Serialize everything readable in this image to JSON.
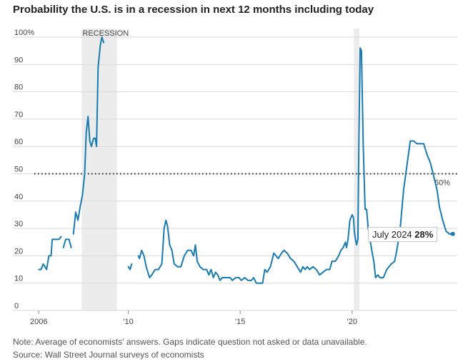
{
  "title": "Probability the U.S. is in a recession in next 12 months including today",
  "recession_label": "RECESSION",
  "threshold_label": "50%",
  "tooltip": {
    "label": "July 2024",
    "value": "28%"
  },
  "note": "Note: Average of economists' answers. Gaps indicate question not asked or data unavailable.",
  "source": "Source: Wall Street Journal surveys of economists",
  "colors": {
    "line": "#1a7bb0",
    "recession_band": "#ececec",
    "dotted": "#222222"
  },
  "chart_data": {
    "type": "line",
    "title": "Probability the U.S. is in a recession in next 12 months including today",
    "xlabel": "",
    "ylabel": "",
    "xlim": [
      2005.8,
      2024.7
    ],
    "ylim": [
      0,
      100
    ],
    "yticks": [
      {
        "value": 0,
        "label": "0"
      },
      {
        "value": 10,
        "label": "10"
      },
      {
        "value": 20,
        "label": "20"
      },
      {
        "value": 30,
        "label": "30"
      },
      {
        "value": 40,
        "label": "40"
      },
      {
        "value": 50,
        "label": "50"
      },
      {
        "value": 60,
        "label": "60"
      },
      {
        "value": 70,
        "label": "70"
      },
      {
        "value": 80,
        "label": "80"
      },
      {
        "value": 90,
        "label": "90"
      },
      {
        "value": 100,
        "label": "100%"
      }
    ],
    "xticks": [
      {
        "value": 2006,
        "label": "2006"
      },
      {
        "value": 2010,
        "label": "'10"
      },
      {
        "value": 2015,
        "label": "'15"
      },
      {
        "value": 2020,
        "label": "'20"
      }
    ],
    "recessions": [
      [
        2007.92,
        2009.5
      ],
      [
        2020.08,
        2020.33
      ]
    ],
    "threshold": 50,
    "highlight": {
      "x": 2024.5,
      "y": 28
    },
    "segments": [
      [
        [
          2006.0,
          15
        ],
        [
          2006.1,
          15
        ],
        [
          2006.2,
          17
        ],
        [
          2006.35,
          15
        ],
        [
          2006.45,
          20
        ],
        [
          2006.55,
          20
        ],
        [
          2006.6,
          26
        ],
        [
          2006.8,
          26
        ],
        [
          2006.9,
          26
        ],
        [
          2007.0,
          27
        ]
      ],
      [
        [
          2007.1,
          23
        ],
        [
          2007.2,
          26
        ],
        [
          2007.35,
          26
        ],
        [
          2007.45,
          23
        ]
      ],
      [
        [
          2007.55,
          28
        ],
        [
          2007.65,
          36
        ],
        [
          2007.75,
          33
        ],
        [
          2007.85,
          38
        ],
        [
          2007.95,
          42
        ],
        [
          2008.05,
          50
        ],
        [
          2008.12,
          65
        ],
        [
          2008.2,
          71
        ],
        [
          2008.28,
          62
        ],
        [
          2008.35,
          60
        ],
        [
          2008.45,
          63
        ],
        [
          2008.52,
          63
        ],
        [
          2008.58,
          60
        ],
        [
          2008.65,
          89
        ],
        [
          2008.75,
          97
        ],
        [
          2008.82,
          100
        ],
        [
          2008.9,
          98
        ]
      ],
      [
        [
          2010.0,
          16
        ],
        [
          2010.08,
          15
        ],
        [
          2010.15,
          17
        ]
      ],
      [
        [
          2010.45,
          20
        ],
        [
          2010.5,
          19
        ],
        [
          2010.6,
          22
        ],
        [
          2010.7,
          20
        ],
        [
          2010.8,
          16
        ],
        [
          2010.95,
          12
        ],
        [
          2011.05,
          13
        ],
        [
          2011.2,
          15
        ],
        [
          2011.35,
          15
        ],
        [
          2011.5,
          17
        ],
        [
          2011.6,
          30
        ],
        [
          2011.68,
          33
        ],
        [
          2011.75,
          31
        ],
        [
          2011.85,
          24
        ],
        [
          2011.95,
          22
        ],
        [
          2012.05,
          17
        ],
        [
          2012.2,
          16
        ],
        [
          2012.35,
          16
        ],
        [
          2012.5,
          20
        ],
        [
          2012.65,
          22
        ],
        [
          2012.8,
          22
        ],
        [
          2012.92,
          20
        ],
        [
          2013.0,
          24
        ],
        [
          2013.08,
          18
        ],
        [
          2013.2,
          16
        ],
        [
          2013.35,
          15
        ],
        [
          2013.5,
          15
        ],
        [
          2013.6,
          13
        ],
        [
          2013.7,
          15
        ],
        [
          2013.8,
          12
        ],
        [
          2013.9,
          14
        ],
        [
          2014.0,
          13
        ],
        [
          2014.1,
          11
        ],
        [
          2014.2,
          12
        ],
        [
          2014.4,
          12
        ],
        [
          2014.55,
          12
        ],
        [
          2014.65,
          11
        ],
        [
          2014.8,
          12
        ],
        [
          2014.95,
          12
        ],
        [
          2015.05,
          11
        ],
        [
          2015.2,
          12
        ],
        [
          2015.35,
          11
        ],
        [
          2015.5,
          11
        ],
        [
          2015.6,
          12
        ],
        [
          2015.72,
          10
        ],
        [
          2015.9,
          10
        ],
        [
          2016.0,
          10
        ],
        [
          2016.1,
          15
        ],
        [
          2016.2,
          14
        ],
        [
          2016.35,
          16
        ],
        [
          2016.5,
          21
        ],
        [
          2016.6,
          20
        ],
        [
          2016.7,
          19
        ],
        [
          2016.85,
          21
        ],
        [
          2016.95,
          22
        ],
        [
          2017.1,
          21
        ],
        [
          2017.25,
          19
        ],
        [
          2017.4,
          18
        ],
        [
          2017.55,
          16
        ],
        [
          2017.7,
          14
        ],
        [
          2017.8,
          16
        ],
        [
          2017.9,
          15
        ],
        [
          2018.0,
          16
        ],
        [
          2018.1,
          15
        ],
        [
          2018.25,
          16
        ],
        [
          2018.4,
          15
        ],
        [
          2018.55,
          13
        ],
        [
          2018.7,
          14
        ],
        [
          2018.85,
          15
        ],
        [
          2019.0,
          15
        ],
        [
          2019.1,
          18
        ],
        [
          2019.25,
          18
        ],
        [
          2019.4,
          20
        ],
        [
          2019.5,
          22
        ],
        [
          2019.6,
          23
        ],
        [
          2019.7,
          25
        ],
        [
          2019.75,
          23
        ],
        [
          2019.82,
          26
        ],
        [
          2019.9,
          33
        ],
        [
          2020.0,
          35
        ],
        [
          2020.06,
          34
        ],
        [
          2020.1,
          29
        ],
        [
          2020.15,
          26
        ],
        [
          2020.2,
          24
        ],
        [
          2020.26,
          26
        ],
        [
          2020.3,
          60
        ],
        [
          2020.36,
          96
        ],
        [
          2020.42,
          95
        ],
        [
          2020.5,
          60
        ],
        [
          2020.58,
          37
        ],
        [
          2020.65,
          37
        ],
        [
          2020.72,
          30
        ],
        [
          2020.82,
          25
        ],
        [
          2020.9,
          21
        ],
        [
          2020.97,
          18
        ],
        [
          2021.05,
          12
        ],
        [
          2021.15,
          13
        ],
        [
          2021.25,
          12
        ],
        [
          2021.4,
          12
        ],
        [
          2021.55,
          15
        ],
        [
          2021.75,
          17
        ],
        [
          2021.9,
          18
        ],
        [
          2022.0,
          22
        ],
        [
          2022.15,
          30
        ],
        [
          2022.3,
          44
        ],
        [
          2022.45,
          53
        ],
        [
          2022.6,
          62
        ],
        [
          2022.75,
          62
        ],
        [
          2022.9,
          61
        ],
        [
          2023.05,
          61
        ],
        [
          2023.2,
          61
        ],
        [
          2023.35,
          57
        ],
        [
          2023.5,
          54
        ],
        [
          2023.65,
          49
        ],
        [
          2023.8,
          44
        ],
        [
          2023.9,
          38
        ],
        [
          2024.05,
          33
        ],
        [
          2024.2,
          29
        ],
        [
          2024.35,
          28
        ],
        [
          2024.5,
          28
        ]
      ]
    ]
  }
}
